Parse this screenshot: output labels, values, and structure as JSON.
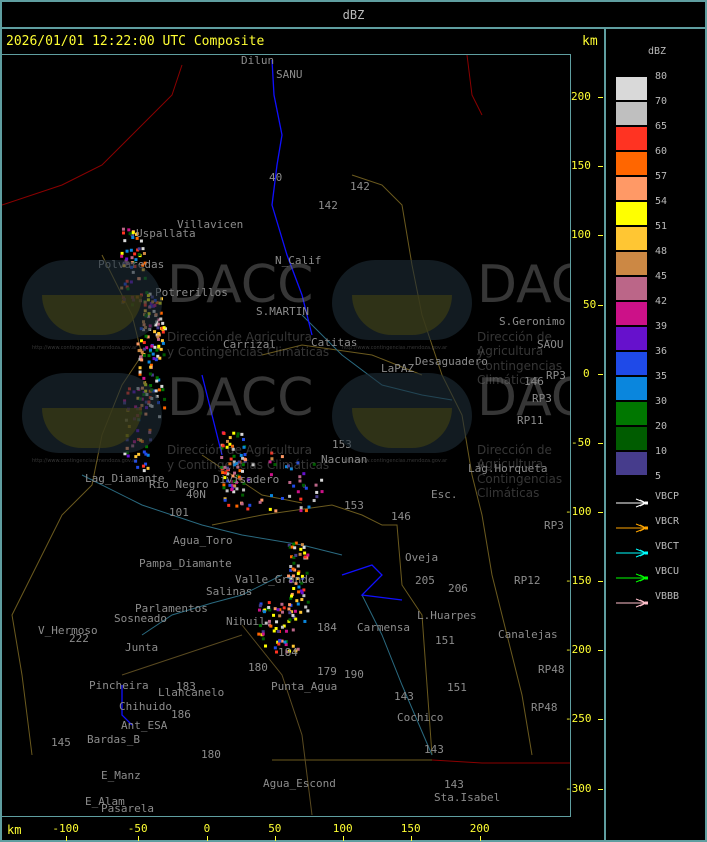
{
  "header": {
    "title": "dBZ"
  },
  "map": {
    "timestamp": "2026/01/01 12:22:00 UTC Composite",
    "km_label_top": "km",
    "km_label_bottom": "km",
    "y_ticks": [
      "200",
      "150",
      "100",
      "50",
      "0",
      "-50",
      "-100",
      "-150",
      "-200",
      "-250",
      "-300"
    ],
    "x_ticks": [
      "-100",
      "-50",
      "0",
      "50",
      "100",
      "150",
      "200"
    ],
    "watermark": {
      "brand": "DACC",
      "line1": "Dirección de Agricultura",
      "line2": "y Contingencias Climáticas",
      "url": "http://www.contingencias.mendoza.gov.ar"
    },
    "places": [
      "Dilun",
      "SANU",
      "Villavicen",
      "Uspallata",
      "Polvaredas",
      "N_Calif",
      "Potrerillos",
      "S.MARTIN",
      "Carrizal",
      "Catitas",
      "LaPAZ",
      "Desaguadero",
      "S.Geronimo",
      "SAOU",
      "146",
      "RP3",
      "RP3",
      "RP11",
      "153",
      "Nacunan",
      "Lag.Horqueta",
      "Esc.",
      "Lag_Diamante",
      "Rio_Negro",
      "Divisadero",
      "40N",
      "101",
      "Agua_Toro",
      "Pampa_Diamante",
      "Valle_Grande",
      "Salinas",
      "Parlamentos",
      "Sosneado",
      "Nihuil",
      "V_Hermoso",
      "Junta",
      "Pincheira",
      "Llancanelo",
      "Chihuido",
      "Ant_ESA",
      "Bardas_B",
      "E_Manz",
      "E_Alam",
      "Pasarela",
      "Punta_Agua",
      "Agua_Escond",
      "Cochico",
      "Sta.Isabel",
      "L.Huarpes",
      "Carmensa",
      "Canalejas",
      "Oveja",
      "205",
      "206",
      "151",
      "151",
      "143",
      "143",
      "143",
      "180",
      "184",
      "179",
      "190",
      "184",
      "RP12",
      "RP3",
      "RP48",
      "RP48",
      "142",
      "142",
      "40",
      "146",
      "153",
      "183",
      "186",
      "180",
      "145",
      "222"
    ]
  },
  "legend": {
    "title": "dBZ",
    "levels": [
      {
        "label": "80",
        "color": "#d9d9d9"
      },
      {
        "label": "70",
        "color": "#bfbfbf"
      },
      {
        "label": "65",
        "color": "#ff3322"
      },
      {
        "label": "60",
        "color": "#ff6600"
      },
      {
        "label": "57",
        "color": "#ff9966"
      },
      {
        "label": "54",
        "color": "#ffff00"
      },
      {
        "label": "51",
        "color": "#ffc633"
      },
      {
        "label": "48",
        "color": "#cc8844"
      },
      {
        "label": "45",
        "color": "#bb6688"
      },
      {
        "label": "42",
        "color": "#cc1188"
      },
      {
        "label": "39",
        "color": "#6611cc"
      },
      {
        "label": "36",
        "color": "#1f4ae8"
      },
      {
        "label": "35",
        "color": "#0a86dd"
      },
      {
        "label": "30",
        "color": "#007700"
      },
      {
        "label": "20",
        "color": "#005c00"
      },
      {
        "label": "10",
        "color": "#463c8c"
      },
      {
        "label": "5",
        "color": ""
      }
    ],
    "radars": [
      {
        "name": "VBCP",
        "color": "#ffffff"
      },
      {
        "name": "VBCR",
        "color": "#ffa500"
      },
      {
        "name": "VBCT",
        "color": "#00ffff"
      },
      {
        "name": "VBCU",
        "color": "#00ff00"
      },
      {
        "name": "VBBB",
        "color": "#ffc0cb"
      }
    ]
  }
}
